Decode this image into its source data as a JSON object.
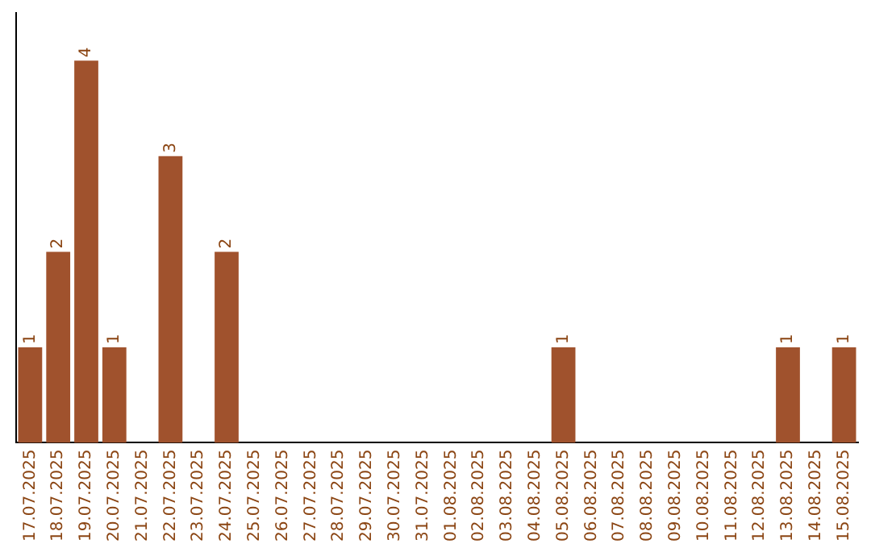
{
  "chart_data": {
    "type": "bar",
    "categories": [
      "17.07.2025",
      "18.07.2025",
      "19.07.2025",
      "20.07.2025",
      "21.07.2025",
      "22.07.2025",
      "23.07.2025",
      "24.07.2025",
      "25.07.2025",
      "26.07.2025",
      "27.07.2025",
      "28.07.2025",
      "29.07.2025",
      "30.07.2025",
      "31.07.2025",
      "01.08.2025",
      "02.08.2025",
      "03.08.2025",
      "04.08.2025",
      "05.08.2025",
      "06.08.2025",
      "07.08.2025",
      "08.08.2025",
      "09.08.2025",
      "10.08.2025",
      "11.08.2025",
      "12.08.2025",
      "13.08.2025",
      "14.08.2025",
      "15.08.2025"
    ],
    "values": [
      1,
      2,
      4,
      1,
      0,
      3,
      0,
      2,
      0,
      0,
      0,
      0,
      0,
      0,
      0,
      0,
      0,
      0,
      0,
      1,
      0,
      0,
      0,
      0,
      0,
      0,
      0,
      1,
      0,
      1
    ],
    "value_labels": [
      "1",
      "2",
      "4",
      "1",
      null,
      "3",
      null,
      "2",
      null,
      null,
      null,
      null,
      null,
      null,
      null,
      null,
      null,
      null,
      null,
      "1",
      null,
      null,
      null,
      null,
      null,
      null,
      null,
      "1",
      null,
      "1"
    ],
    "color": "#a0522d",
    "grid": false,
    "legend": false
  }
}
